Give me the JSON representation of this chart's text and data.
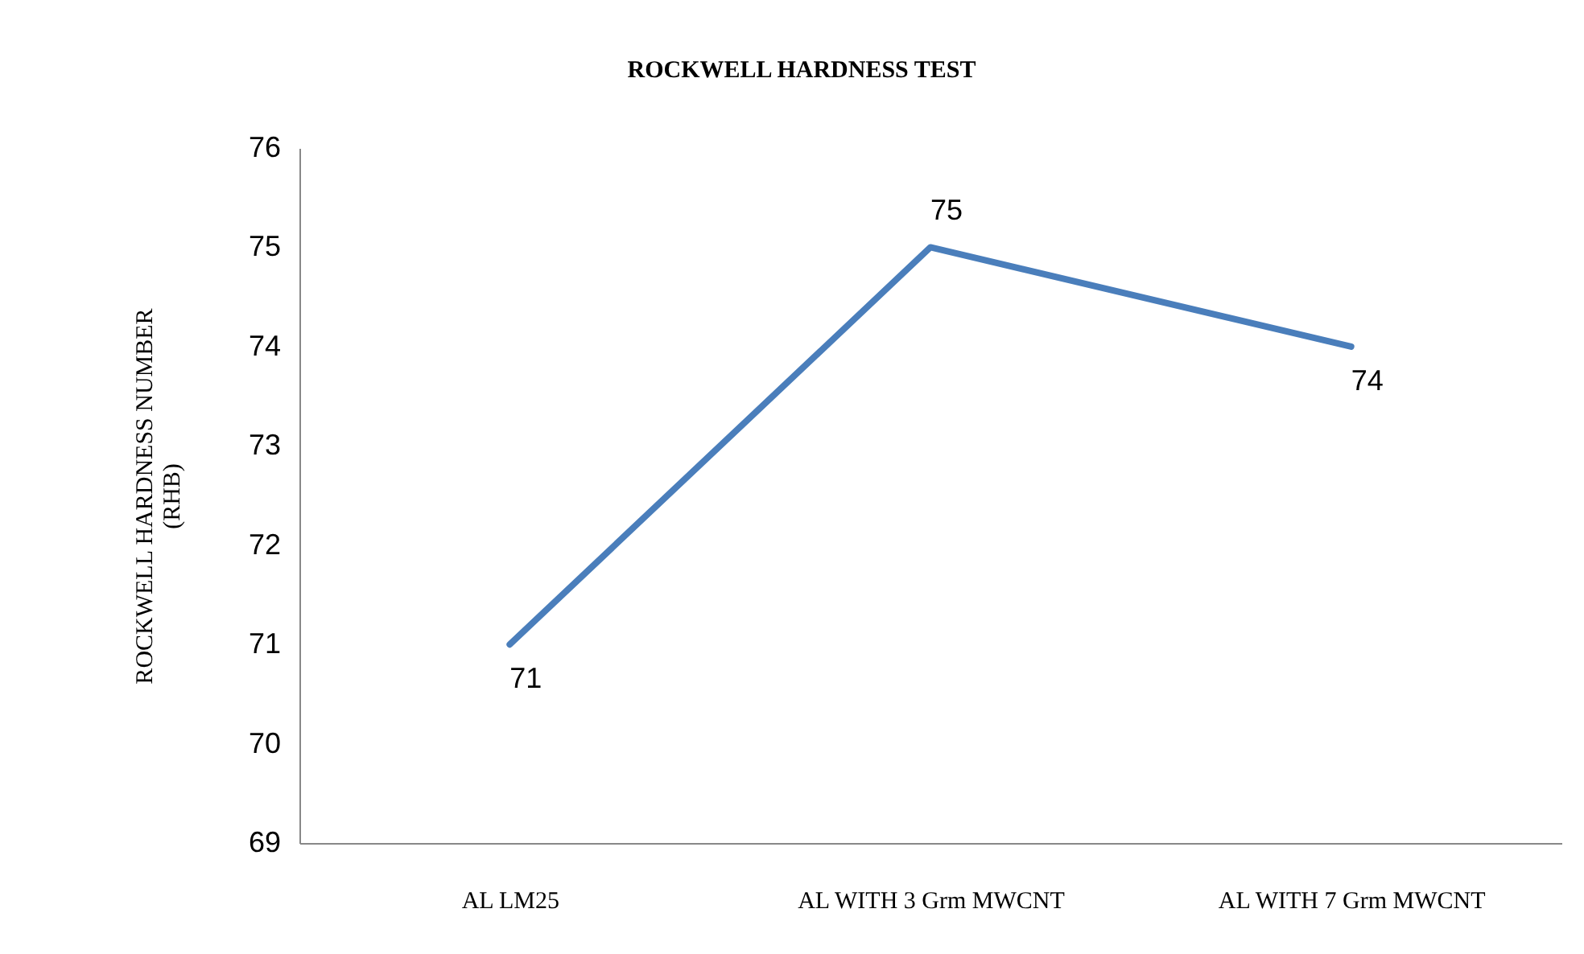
{
  "chart_data": {
    "type": "line",
    "title": "ROCKWELL HARDNESS TEST",
    "ylabel": "ROCKWELL HARDNESS NUMBER\n(RHB)",
    "categories": [
      "AL LM25",
      "AL WITH 3 Grm MWCNT",
      "AL WITH 7 Grm MWCNT"
    ],
    "series": [
      {
        "color": "#4a7ebb",
        "values": [
          71,
          75,
          74
        ]
      }
    ],
    "ylim": [
      69,
      76
    ],
    "yticks": [
      69,
      70,
      71,
      72,
      73,
      74,
      75,
      76
    ],
    "grid": false,
    "legend": false,
    "marker": "none",
    "line_style": "solid",
    "data_labels": true
  }
}
